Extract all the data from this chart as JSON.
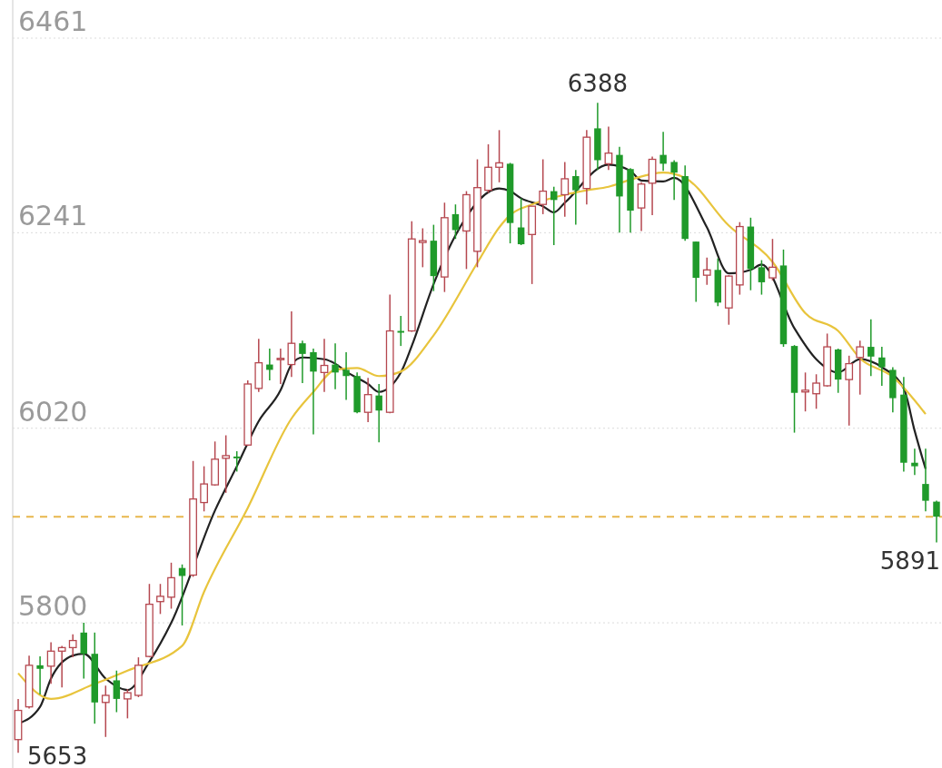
{
  "chart_data": {
    "type": "candlestick",
    "categories": [
      null,
      null,
      null,
      null,
      null,
      null,
      null,
      null,
      null,
      null,
      null,
      null,
      null,
      null,
      null,
      null,
      null,
      null,
      null,
      null,
      null,
      null,
      null,
      null,
      null,
      null,
      null,
      null,
      null,
      null,
      null,
      null,
      null,
      null,
      null,
      null,
      null,
      null,
      null,
      null,
      null,
      null,
      null,
      null,
      null,
      null,
      null,
      null,
      null,
      null,
      null,
      null,
      null,
      null,
      null,
      null,
      null,
      null,
      null,
      null,
      null,
      null,
      null,
      null,
      null,
      null,
      null,
      null,
      null,
      null,
      null,
      null,
      null,
      null,
      null,
      null,
      null,
      null,
      null,
      null,
      null,
      null,
      null,
      null,
      null
    ],
    "ohlc": [
      [
        5668,
        5714,
        5653,
        5701
      ],
      [
        5705,
        5763,
        5703,
        5752
      ],
      [
        5752,
        5762,
        5719,
        5748
      ],
      [
        5751,
        5778,
        5731,
        5768
      ],
      [
        5768,
        5774,
        5727,
        5772
      ],
      [
        5772,
        5787,
        5761,
        5780
      ],
      [
        5789,
        5800,
        5737,
        5765
      ],
      [
        5765,
        5789,
        5686,
        5710
      ],
      [
        5710,
        5729,
        5671,
        5718
      ],
      [
        5735,
        5746,
        5699,
        5714
      ],
      [
        5714,
        5725,
        5692,
        5721
      ],
      [
        5718,
        5761,
        5716,
        5752
      ],
      [
        5762,
        5844,
        5761,
        5821
      ],
      [
        5824,
        5844,
        5810,
        5830
      ],
      [
        5829,
        5868,
        5816,
        5851
      ],
      [
        5862,
        5866,
        5797,
        5853
      ],
      [
        5854,
        5983,
        5852,
        5940
      ],
      [
        5936,
        5977,
        5926,
        5957
      ],
      [
        5956,
        6005,
        5955,
        5985
      ],
      [
        5986,
        6012,
        5947,
        5989
      ],
      [
        5988,
        5994,
        5971,
        5986
      ],
      [
        6001,
        6074,
        6000,
        6070
      ],
      [
        6065,
        6121,
        6061,
        6094
      ],
      [
        6092,
        6110,
        6074,
        6086
      ],
      [
        6098,
        6110,
        6070,
        6099
      ],
      [
        6092,
        6152,
        6078,
        6116
      ],
      [
        6116,
        6119,
        6071,
        6104
      ],
      [
        6106,
        6110,
        6013,
        6084
      ],
      [
        6083,
        6121,
        6061,
        6091
      ],
      [
        6092,
        6116,
        6064,
        6083
      ],
      [
        6086,
        6106,
        6052,
        6079
      ],
      [
        6079,
        6083,
        6037,
        6038
      ],
      [
        6038,
        6077,
        6027,
        6058
      ],
      [
        6057,
        6070,
        6004,
        6040
      ],
      [
        6038,
        6171,
        6037,
        6130
      ],
      [
        6130,
        6147,
        6113,
        6128
      ],
      [
        6130,
        6254,
        6129,
        6234
      ],
      [
        6230,
        6246,
        6202,
        6232
      ],
      [
        6232,
        6250,
        6175,
        6192
      ],
      [
        6191,
        6275,
        6174,
        6258
      ],
      [
        6262,
        6273,
        6234,
        6244
      ],
      [
        6243,
        6288,
        6200,
        6284
      ],
      [
        6220,
        6324,
        6202,
        6292
      ],
      [
        6289,
        6341,
        6286,
        6315
      ],
      [
        6315,
        6357,
        6298,
        6320
      ],
      [
        6319,
        6320,
        6229,
        6252
      ],
      [
        6247,
        6280,
        6227,
        6228
      ],
      [
        6239,
        6271,
        6183,
        6271
      ],
      [
        6273,
        6324,
        6262,
        6288
      ],
      [
        6288,
        6293,
        6227,
        6278
      ],
      [
        6284,
        6321,
        6259,
        6302
      ],
      [
        6305,
        6312,
        6250,
        6289
      ],
      [
        6291,
        6357,
        6273,
        6349
      ],
      [
        6359,
        6388,
        6312,
        6323
      ],
      [
        6319,
        6361,
        6312,
        6331
      ],
      [
        6329,
        6338,
        6241,
        6282
      ],
      [
        6313,
        6314,
        6241,
        6266
      ],
      [
        6269,
        6298,
        6243,
        6296
      ],
      [
        6297,
        6327,
        6261,
        6324
      ],
      [
        6329,
        6355,
        6311,
        6319
      ],
      [
        6321,
        6323,
        6278,
        6309
      ],
      [
        6305,
        6317,
        6232,
        6234
      ],
      [
        6231,
        6231,
        6163,
        6190
      ],
      [
        6193,
        6213,
        6182,
        6199
      ],
      [
        6199,
        6212,
        6158,
        6162
      ],
      [
        6156,
        6193,
        6137,
        6192
      ],
      [
        6182,
        6253,
        6171,
        6248
      ],
      [
        6248,
        6258,
        6176,
        6200
      ],
      [
        6202,
        6210,
        6171,
        6185
      ],
      [
        6190,
        6234,
        6187,
        6202
      ],
      [
        6204,
        6222,
        6112,
        6115
      ],
      [
        6113,
        6114,
        6015,
        6060
      ],
      [
        6061,
        6083,
        6039,
        6063
      ],
      [
        6059,
        6081,
        6042,
        6071
      ],
      [
        6068,
        6127,
        6067,
        6112
      ],
      [
        6109,
        6110,
        6060,
        6075
      ],
      [
        6075,
        6102,
        6023,
        6093
      ],
      [
        6100,
        6119,
        6058,
        6112
      ],
      [
        6112,
        6143,
        6079,
        6101
      ],
      [
        6100,
        6112,
        6068,
        6089
      ],
      [
        6086,
        6089,
        6038,
        6054
      ],
      [
        6058,
        6078,
        5971,
        5981
      ],
      [
        5981,
        5997,
        5967,
        5977
      ],
      [
        5957,
        5997,
        5926,
        5938
      ],
      [
        5937,
        5938,
        5891,
        5920
      ]
    ],
    "series": [
      {
        "type": "line",
        "color": "#222222",
        "values": [
          5686,
          null,
          5705,
          5737,
          null,
          5763,
          5765,
          null,
          5737,
          null,
          5724,
          null,
          5756,
          null,
          5800,
          null,
          null,
          null,
          5927,
          null,
          5977,
          null,
          6028,
          null,
          6063,
          6092,
          6100,
          null,
          6098,
          6093,
          6084,
          null,
          6070,
          6061,
          null,
          6083,
          6113,
          null,
          6183,
          null,
          6238,
          null,
          null,
          null,
          6291,
          6288,
          6280,
          null,
          6271,
          6264,
          6275,
          null,
          null,
          null,
          6318,
          null,
          6311,
          6300,
          null,
          6299,
          6303,
          null,
          null,
          6247,
          null,
          6195,
          null,
          6199,
          6205,
          null,
          null,
          6133,
          null,
          6098,
          null,
          6083,
          null,
          6098,
          null,
          6089,
          null,
          6065,
          6017,
          5974,
          null
        ]
      },
      {
        "type": "line",
        "color": "#e8c43c",
        "values": [
          5743,
          null,
          null,
          5714,
          null,
          null,
          null,
          5731,
          null,
          null,
          5746,
          null,
          null,
          null,
          null,
          5774,
          null,
          5835,
          null,
          null,
          null,
          5930,
          null,
          null,
          null,
          6031,
          null,
          6061,
          null,
          6086,
          null,
          6088,
          null,
          6079,
          null,
          6084,
          null,
          null,
          6125,
          null,
          null,
          null,
          6207,
          null,
          6247,
          6261,
          null,
          6273,
          null,
          null,
          6284,
          null,
          6289,
          null,
          6293,
          null,
          6301,
          null,
          null,
          6309,
          null,
          6303,
          null,
          null,
          null,
          6249,
          null,
          null,
          null,
          6208,
          null,
          null,
          6150,
          null,
          null,
          6130,
          null,
          6099,
          null,
          null,
          6078,
          null,
          null,
          6036,
          null
        ]
      }
    ],
    "ylim": [
      5640,
      6500
    ],
    "yticks": [
      5800,
      6020,
      6241,
      6461
    ],
    "grid": "y",
    "tick_labels": "y",
    "ref_lines": [
      {
        "axis": "y",
        "value": 5920,
        "color": "#e8b64c",
        "line_style": "dashed"
      }
    ],
    "annotations": [
      "6388",
      "5653",
      "5891"
    ]
  }
}
